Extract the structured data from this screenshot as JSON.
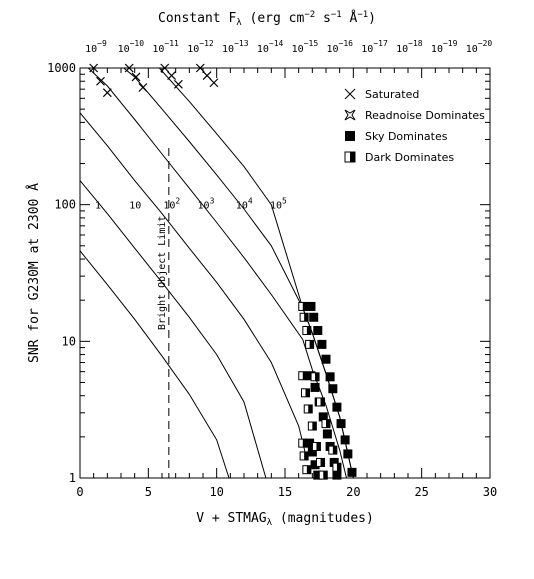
{
  "chart_data": {
    "type": "line",
    "title": "Constant F_λ (erg cm^-2 s^-1 Å^-1)",
    "title_parts": {
      "prefix": "Constant F",
      "sub": "λ",
      "mid1": " (erg cm",
      "exp1": "−2",
      "mid2": " s",
      "exp2": "−1",
      "mid3": " Å",
      "exp3": "−1",
      "suffix": ")"
    },
    "xlabel": "V + STMAG_λ (magnitudes)",
    "xlabel_parts": {
      "prefix": "V + STMAG",
      "sub": "λ",
      "suffix": " (magnitudes)"
    },
    "ylabel": "SNR for G230M at 2300 Å",
    "xlim": [
      0,
      30
    ],
    "ylim": [
      1,
      1000
    ],
    "y_scale": "log",
    "x_ticks": [
      0,
      5,
      10,
      15,
      20,
      25,
      30
    ],
    "y_ticks": [
      1,
      10,
      100,
      1000
    ],
    "top_axis_labels": [
      {
        "base": "10",
        "exp": "−9"
      },
      {
        "base": "10",
        "exp": "−10"
      },
      {
        "base": "10",
        "exp": "−11"
      },
      {
        "base": "10",
        "exp": "−12"
      },
      {
        "base": "10",
        "exp": "−13"
      },
      {
        "base": "10",
        "exp": "−14"
      },
      {
        "base": "10",
        "exp": "−15"
      },
      {
        "base": "10",
        "exp": "−16"
      },
      {
        "base": "10",
        "exp": "−17"
      },
      {
        "base": "10",
        "exp": "−18"
      },
      {
        "base": "10",
        "exp": "−19"
      },
      {
        "base": "10",
        "exp": "−20"
      }
    ],
    "series": [
      {
        "name": "1",
        "label_base": "1",
        "label_exp": "",
        "label_at": [
          1.1,
          100
        ],
        "x": [
          0.0,
          2.0,
          4.0,
          6.0,
          8.0,
          10.0,
          10.9
        ],
        "y": [
          46,
          26,
          14.5,
          7.8,
          4.1,
          1.9,
          1.0
        ]
      },
      {
        "name": "10",
        "label_base": "10",
        "label_exp": "",
        "label_at": [
          3.6,
          100
        ],
        "x": [
          0.0,
          2.0,
          4.0,
          6.0,
          8.0,
          10.0,
          12.0,
          13.6
        ],
        "y": [
          150,
          86,
          48,
          27,
          15,
          8.0,
          3.6,
          1.0
        ]
      },
      {
        "name": "10^2",
        "label_base": "10",
        "label_exp": "2",
        "label_at": [
          6.1,
          100
        ],
        "x": [
          0.0,
          2.0,
          4.0,
          6.0,
          8.0,
          10.0,
          12.0,
          14.0,
          16.0,
          16.5
        ],
        "y": [
          470,
          270,
          150,
          86,
          48,
          27,
          14.5,
          7.0,
          2.4,
          1.5
        ]
      },
      {
        "name": "10^3",
        "label_base": "10",
        "label_exp": "3",
        "label_at": [
          8.6,
          100
        ],
        "x": [
          0.6,
          2.0,
          4.0,
          6.0,
          8.0,
          10.0,
          12.0,
          14.0,
          16.3,
          17.0,
          18.0,
          19.0,
          19.5
        ],
        "y": [
          1000,
          740,
          420,
          235,
          132,
          74,
          41,
          22,
          10.3,
          6.2,
          3.4,
          1.6,
          1.0
        ]
      },
      {
        "name": "10^4",
        "label_base": "10",
        "label_exp": "4",
        "label_at": [
          11.4,
          100
        ],
        "x": [
          3.2,
          4.0,
          6.0,
          8.0,
          10.0,
          12.0,
          14.0,
          16.3,
          17.0,
          18.0,
          19.0,
          20.0
        ],
        "y": [
          1000,
          860,
          500,
          290,
          165,
          93,
          50,
          17.5,
          11.5,
          5.8,
          2.8,
          1.0
        ]
      },
      {
        "name": "10^5",
        "label_base": "10",
        "label_exp": "5",
        "label_at": [
          13.9,
          100
        ],
        "x": [
          5.8,
          8.0,
          10.0,
          12.0,
          14.0,
          16.3,
          17.0,
          18.0,
          19.0,
          20.0
        ],
        "y": [
          1000,
          570,
          330,
          190,
          100,
          17.5,
          11.5,
          5.8,
          2.8,
          1.0
        ]
      }
    ],
    "bright_object_limit": {
      "x": 6.5,
      "label": "Bright Object Limit"
    },
    "markers": {
      "saturated": [
        [
          1.0,
          1000
        ],
        [
          1.5,
          800
        ],
        [
          2.0,
          660
        ],
        [
          3.6,
          1000
        ],
        [
          4.1,
          860
        ],
        [
          4.6,
          720
        ],
        [
          6.2,
          1000
        ],
        [
          6.7,
          880
        ],
        [
          7.2,
          760
        ],
        [
          8.8,
          1000
        ],
        [
          9.3,
          880
        ],
        [
          9.8,
          780
        ]
      ],
      "sky_dominates": [
        [
          16.9,
          18
        ],
        [
          17.1,
          15
        ],
        [
          17.4,
          12
        ],
        [
          17.7,
          9.5
        ],
        [
          18.0,
          7.4
        ],
        [
          18.3,
          5.5
        ],
        [
          18.5,
          4.5
        ],
        [
          18.8,
          3.3
        ],
        [
          19.1,
          2.5
        ],
        [
          19.4,
          1.9
        ],
        [
          19.6,
          1.5
        ],
        [
          19.9,
          1.1
        ],
        [
          16.9,
          5.6
        ],
        [
          17.2,
          4.6
        ],
        [
          17.5,
          3.6
        ],
        [
          17.8,
          2.8
        ],
        [
          18.1,
          2.1
        ],
        [
          18.3,
          1.7
        ],
        [
          18.6,
          1.3
        ],
        [
          18.8,
          1.05
        ],
        [
          16.8,
          1.8
        ],
        [
          17.0,
          1.55
        ],
        [
          17.2,
          1.25
        ],
        [
          17.4,
          1.05
        ]
      ],
      "dark_dominates": [
        [
          16.3,
          18
        ],
        [
          16.4,
          15
        ],
        [
          16.6,
          12
        ],
        [
          16.8,
          9.5
        ],
        [
          17.2,
          5.5
        ],
        [
          17.6,
          3.6
        ],
        [
          18.0,
          2.5
        ],
        [
          18.5,
          1.6
        ],
        [
          18.8,
          1.2
        ],
        [
          16.3,
          5.6
        ],
        [
          16.5,
          4.2
        ],
        [
          16.7,
          3.2
        ],
        [
          17.0,
          2.4
        ],
        [
          17.3,
          1.7
        ],
        [
          17.6,
          1.3
        ],
        [
          17.8,
          1.05
        ],
        [
          16.3,
          1.8
        ],
        [
          16.4,
          1.45
        ],
        [
          16.6,
          1.15
        ]
      ]
    },
    "legend": {
      "placement": "top-right",
      "items": [
        {
          "symbol": "cross",
          "label": "Saturated"
        },
        {
          "symbol": "star",
          "label": "Readnoise Dominates"
        },
        {
          "symbol": "filled-square",
          "label": "Sky Dominates"
        },
        {
          "symbol": "half-square",
          "label": "Dark Dominates"
        }
      ]
    },
    "grid": false
  }
}
